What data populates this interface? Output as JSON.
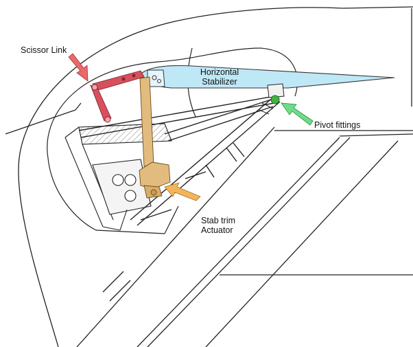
{
  "labels": {
    "scissor_link": "Scissor Link",
    "horizontal_stabilizer_line1": "Horizontal",
    "horizontal_stabilizer_line2": "Stabilizer",
    "pivot_fittings": "Pivot fittings",
    "stab_trim_line1": "Stab trim",
    "stab_trim_line2": "Actuator"
  },
  "colors": {
    "stabilizer_fill": "#bfe8f7",
    "scissor_link": "#d94f5c",
    "scissor_arrow": "#e86a6a",
    "actuator": "#e2bc7e",
    "actuator_arrow": "#f2b55a",
    "pivot_fitting": "#3fb53f",
    "pivot_arrow": "#6fdc8a",
    "line_art": "#222222"
  }
}
